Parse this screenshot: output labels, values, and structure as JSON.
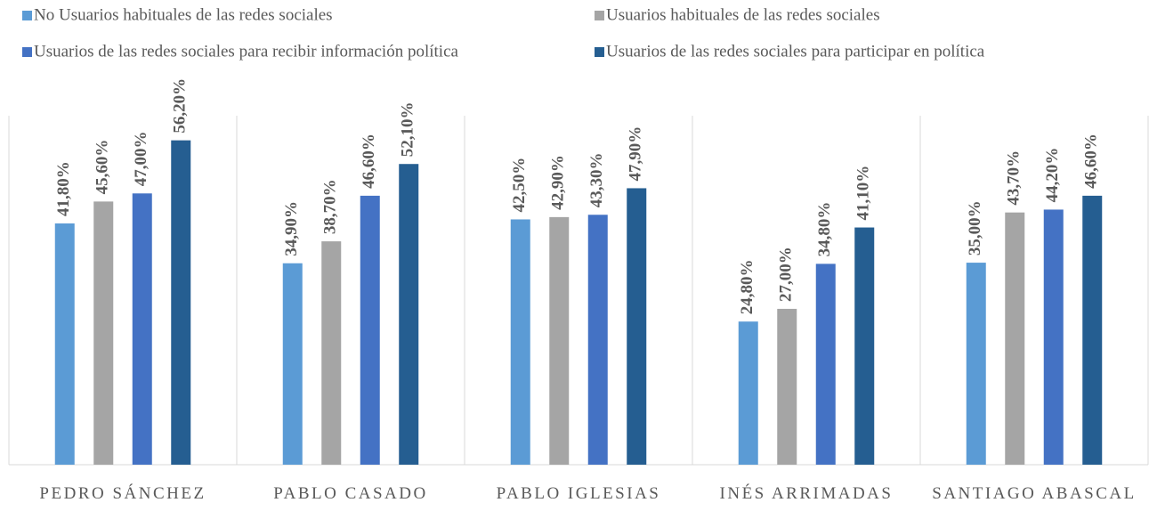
{
  "chart_data": {
    "type": "bar",
    "categories": [
      "PEDRO SÁNCHEZ",
      "PABLO CASADO",
      "PABLO IGLESIAS",
      "INÉS ARRIMADAS",
      "SANTIAGO ABASCAL"
    ],
    "series": [
      {
        "name": "No Usuarios habituales de las redes sociales",
        "color": "#5b9bd5",
        "values": [
          41.8,
          34.9,
          42.5,
          24.8,
          35.0
        ],
        "value_labels": [
          "41,80%",
          "34,90%",
          "42,50%",
          "24,80%",
          "35,00%"
        ]
      },
      {
        "name": "Usuarios habituales de las redes sociales",
        "color": "#a5a5a5",
        "values": [
          45.6,
          38.7,
          42.9,
          27.0,
          43.7
        ],
        "value_labels": [
          "45,60%",
          "38,70%",
          "42,90%",
          "27,00%",
          "43,70%"
        ]
      },
      {
        "name": "Usuarios de las redes sociales para recibir información política",
        "color": "#4472c4",
        "values": [
          47.0,
          46.6,
          43.3,
          34.8,
          44.2
        ],
        "value_labels": [
          "47,00%",
          "46,60%",
          "43,30%",
          "34,80%",
          "44,20%"
        ]
      },
      {
        "name": "Usuarios de las redes sociales para participar en política",
        "color": "#255e91",
        "values": [
          56.2,
          52.1,
          47.9,
          41.1,
          46.6
        ],
        "value_labels": [
          "56,20%",
          "52,10%",
          "47,90%",
          "41,10%",
          "46,60%"
        ]
      }
    ],
    "ylim": [
      0,
      60
    ]
  }
}
